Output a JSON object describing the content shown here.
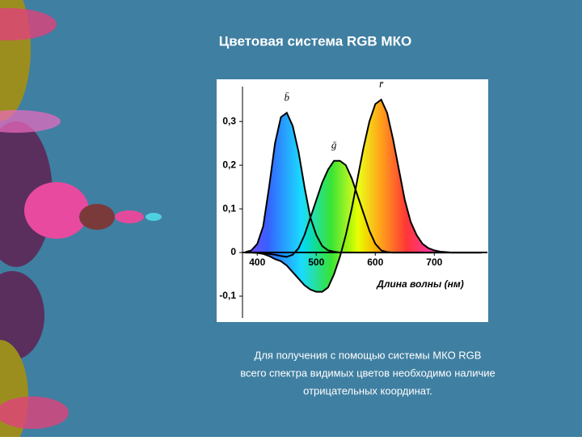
{
  "title": "Цветовая система RGB МКО",
  "chart_data": {
    "type": "line",
    "x_label": "Длина волны (нм)",
    "x": [
      380,
      390,
      400,
      410,
      420,
      430,
      440,
      450,
      460,
      470,
      480,
      490,
      500,
      510,
      520,
      530,
      540,
      550,
      560,
      570,
      580,
      590,
      600,
      610,
      620,
      630,
      640,
      650,
      660,
      670,
      680,
      690,
      700,
      710,
      720,
      730,
      740,
      750,
      760,
      770,
      780
    ],
    "series": [
      {
        "name": "b̄",
        "color": "#000000",
        "values": [
          0.001,
          0.005,
          0.02,
          0.06,
          0.15,
          0.25,
          0.31,
          0.32,
          0.29,
          0.23,
          0.15,
          0.08,
          0.04,
          0.015,
          0.005,
          0.002,
          0,
          0,
          0,
          0,
          0,
          0,
          0,
          0,
          0,
          0,
          0,
          0,
          0,
          0,
          0,
          0,
          0,
          0,
          0,
          0,
          0,
          0,
          0,
          0,
          0
        ]
      },
      {
        "name": "ḡ",
        "color": "#000000",
        "values": [
          0,
          0,
          0,
          -0.001,
          -0.003,
          -0.005,
          -0.008,
          -0.01,
          -0.005,
          0.01,
          0.04,
          0.08,
          0.12,
          0.16,
          0.19,
          0.21,
          0.21,
          0.2,
          0.17,
          0.13,
          0.09,
          0.05,
          0.02,
          0.005,
          0.001,
          0,
          0,
          0,
          0,
          0,
          0,
          0,
          0,
          0,
          0,
          0,
          0,
          0,
          0,
          0,
          0
        ]
      },
      {
        "name": "r̄",
        "color": "#000000",
        "values": [
          0,
          0,
          -0.001,
          -0.003,
          -0.008,
          -0.015,
          -0.02,
          -0.03,
          -0.045,
          -0.06,
          -0.075,
          -0.085,
          -0.09,
          -0.09,
          -0.08,
          -0.05,
          -0.01,
          0.04,
          0.1,
          0.17,
          0.24,
          0.3,
          0.34,
          0.35,
          0.32,
          0.26,
          0.19,
          0.12,
          0.07,
          0.04,
          0.02,
          0.01,
          0.005,
          0.002,
          0.001,
          0,
          0,
          0,
          0,
          0,
          0
        ]
      }
    ],
    "xlim": [
      375,
      790
    ],
    "xticks": [
      400,
      500,
      600,
      700
    ],
    "ylim": [
      -0.15,
      0.38
    ],
    "yticks": [
      {
        "value": 0.3,
        "label": "0,3"
      },
      {
        "value": 0.2,
        "label": "0,2"
      },
      {
        "value": 0.1,
        "label": "0,1"
      },
      0,
      {
        "value": -0.1,
        "label": "-0,1"
      }
    ]
  },
  "caption": [
    "Для получения с помощью системы МКО RGB",
    "всего спектра видимых цветов необходимо наличие",
    "отрицательных координат."
  ]
}
